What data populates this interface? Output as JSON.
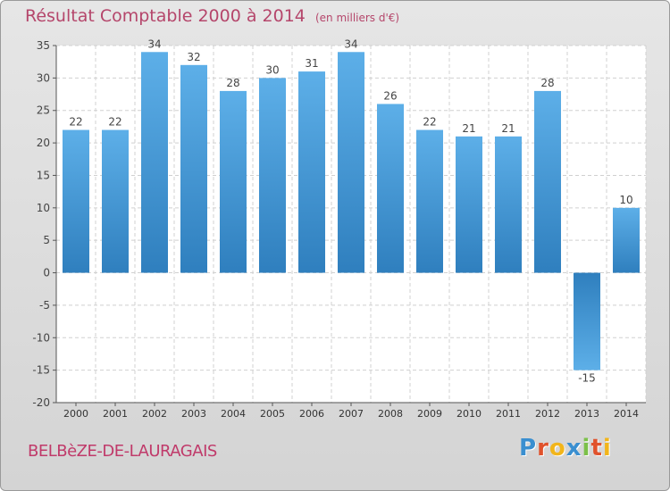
{
  "chart_data": {
    "type": "bar",
    "title": "Résultat Comptable 2000 à 2014",
    "subtitle": "(en milliers d'€)",
    "categories": [
      "2000",
      "2001",
      "2002",
      "2003",
      "2004",
      "2005",
      "2006",
      "2007",
      "2008",
      "2009",
      "2010",
      "2011",
      "2012",
      "2013",
      "2014"
    ],
    "values": [
      22,
      22,
      34,
      32,
      28,
      30,
      31,
      34,
      26,
      22,
      21,
      21,
      28,
      -15,
      10
    ],
    "data_labels": [
      "22",
      "22",
      "34",
      "32",
      "28",
      "30",
      "31",
      "34",
      "26",
      "22",
      "21",
      "21",
      "28",
      "-15",
      "10"
    ],
    "ylim": [
      -20,
      35
    ],
    "yticks": [
      35,
      30,
      25,
      20,
      15,
      10,
      5,
      0,
      -5,
      -10,
      -15,
      -20
    ],
    "grid": true,
    "bar_color_top": "#5dafe8",
    "bar_color_bottom": "#2f7fbe"
  },
  "footer": {
    "commune": "BELBèZE-DE-LAURAGAIS",
    "logo_letters": [
      {
        "ch": "P",
        "color": "#3a8fd0"
      },
      {
        "ch": "r",
        "color": "#e0522c"
      },
      {
        "ch": "o",
        "color": "#f2b51b"
      },
      {
        "ch": "x",
        "color": "#3a8fd0"
      },
      {
        "ch": "i",
        "color": "#7cc04a"
      },
      {
        "ch": "t",
        "color": "#e0522c"
      },
      {
        "ch": "i",
        "color": "#f2b51b"
      }
    ]
  }
}
